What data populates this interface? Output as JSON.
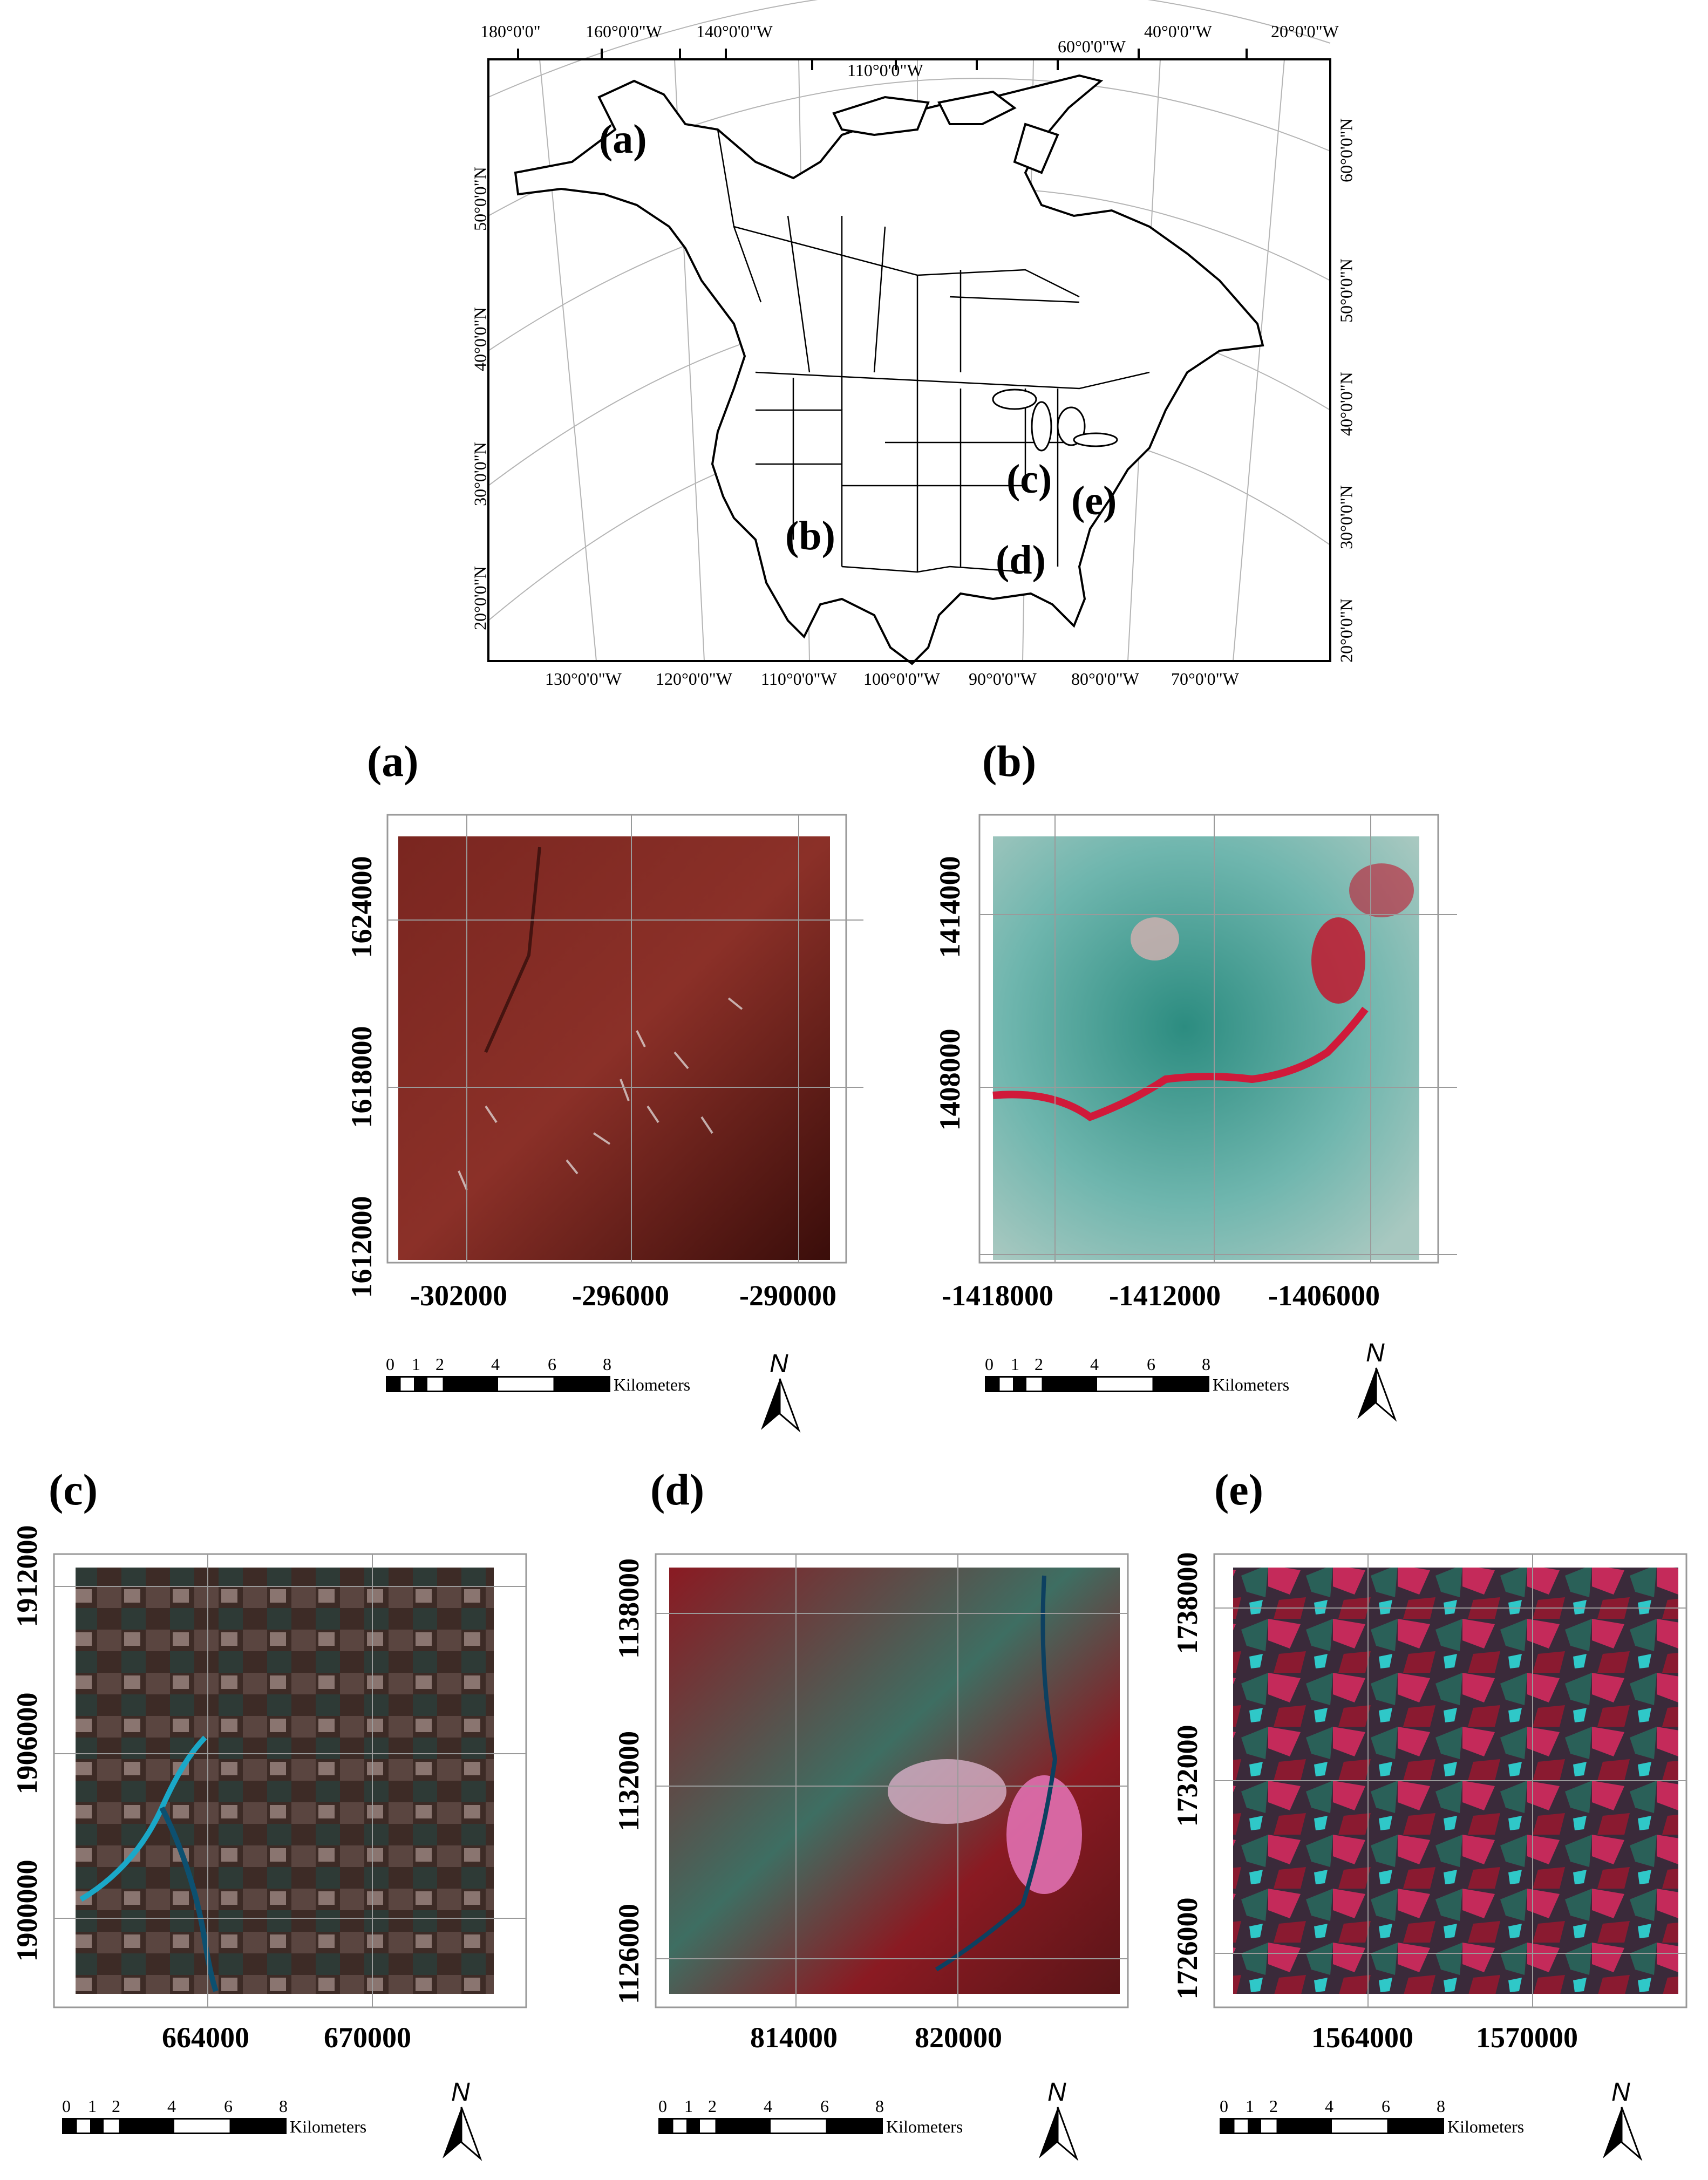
{
  "overview": {
    "top_lon_labels": [
      "180°0'0\"",
      "160°0'0\"W",
      "140°0'0\"W",
      "110°0'0\"W",
      "60°0'0\"W",
      "40°0'0\"W",
      "20°0'0\"W"
    ],
    "bottom_lon_labels": [
      "130°0'0\"W",
      "120°0'0\"W",
      "110°0'0\"W",
      "100°0'0\"W",
      "90°0'0\"W",
      "80°0'0\"W",
      "70°0'0\"W"
    ],
    "left_lat_labels": [
      "50°0'0\"N",
      "40°0'0\"N",
      "30°0'0\"N",
      "20°0'0\"N"
    ],
    "right_lat_labels": [
      "60°0'0\"N",
      "50°0'0\"N",
      "40°0'0\"N",
      "30°0'0\"N",
      "20°0'0\"N"
    ],
    "site_labels": [
      "(a)",
      "(b)",
      "(c)",
      "(d)",
      "(e)"
    ]
  },
  "panels": [
    {
      "id": "a",
      "label": "(a)",
      "y_ticks": [
        "1624000",
        "1618000",
        "1612000"
      ],
      "x_ticks": [
        "-302000",
        "-296000",
        "-290000"
      ],
      "palette": "red-terrain"
    },
    {
      "id": "b",
      "label": "(b)",
      "y_ticks": [
        "1414000",
        "1408000"
      ],
      "x_ticks": [
        "-1418000",
        "-1412000",
        "-1406000"
      ],
      "palette": "cyan-canyon"
    },
    {
      "id": "c",
      "label": "(c)",
      "y_ticks": [
        "1912000",
        "1906000",
        "1900000"
      ],
      "x_ticks": [
        "664000",
        "670000"
      ],
      "palette": "brown-fields"
    },
    {
      "id": "d",
      "label": "(d)",
      "y_ticks": [
        "1138000",
        "1132000",
        "1126000"
      ],
      "x_ticks": [
        "814000",
        "820000"
      ],
      "palette": "red-urban"
    },
    {
      "id": "e",
      "label": "(e)",
      "y_ticks": [
        "1738000",
        "1732000",
        "1726000"
      ],
      "x_ticks": [
        "1564000",
        "1570000"
      ],
      "palette": "magenta-fields"
    }
  ],
  "scale_bar": {
    "ticks": [
      "0",
      "1",
      "2",
      "4",
      "6",
      "8"
    ],
    "unit": "Kilometers"
  },
  "north_arrow": {
    "label": "N"
  },
  "colors": {
    "frame": "#000000",
    "grid": "#999999"
  }
}
